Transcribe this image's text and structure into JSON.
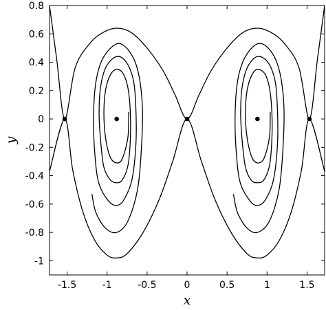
{
  "chart_data": {
    "type": "line",
    "title": "",
    "xlabel": "x",
    "ylabel": "y",
    "xlim": [
      -1.72,
      1.72
    ],
    "ylim": [
      -1.1,
      0.8
    ],
    "grid": false,
    "legend": "none",
    "color": "#000000",
    "xticks": [
      -1.5,
      -1,
      -0.5,
      0,
      0.5,
      1,
      1.5
    ],
    "xtick_labels": [
      "-1.5",
      "-1",
      "-0.5",
      "0",
      "0.5",
      "1",
      "1.5"
    ],
    "yticks": [
      -1,
      -0.8,
      -0.6,
      -0.4,
      -0.2,
      0,
      0.2,
      0.4,
      0.6,
      0.8
    ],
    "ytick_labels": [
      "-1",
      "-0.8",
      "-0.6",
      "-0.4",
      "-0.2",
      "0",
      "0.2",
      "0.4",
      "0.6",
      "0.8"
    ],
    "equilibria": [
      {
        "x": -1.53,
        "y": 0
      },
      {
        "x": -0.88,
        "y": 0
      },
      {
        "x": 0,
        "y": 0
      },
      {
        "x": 0.88,
        "y": 0
      },
      {
        "x": 1.53,
        "y": 0
      }
    ],
    "curves": [
      {
        "id": "separatrix-upper",
        "points": [
          [
            -1.72,
            0.8
          ],
          [
            -1.63,
            0.42
          ],
          [
            -1.53,
            0
          ],
          [
            -1.4,
            0.36
          ],
          [
            -1.22,
            0.53
          ],
          [
            -1.05,
            0.61
          ],
          [
            -0.88,
            0.64
          ],
          [
            -0.7,
            0.61
          ],
          [
            -0.5,
            0.5
          ],
          [
            -0.3,
            0.34
          ],
          [
            -0.15,
            0.17
          ],
          [
            0,
            0
          ],
          [
            0.15,
            0.17
          ],
          [
            0.3,
            0.34
          ],
          [
            0.5,
            0.5
          ],
          [
            0.7,
            0.61
          ],
          [
            0.88,
            0.64
          ],
          [
            1.05,
            0.61
          ],
          [
            1.22,
            0.53
          ],
          [
            1.4,
            0.36
          ],
          [
            1.53,
            0
          ],
          [
            1.63,
            0.42
          ],
          [
            1.72,
            0.8
          ]
        ]
      },
      {
        "id": "separatrix-lower",
        "points": [
          [
            -1.72,
            -0.37
          ],
          [
            -1.53,
            0
          ],
          [
            -1.43,
            -0.36
          ],
          [
            -1.3,
            -0.66
          ],
          [
            -1.15,
            -0.86
          ],
          [
            -1.0,
            -0.96
          ],
          [
            -0.88,
            -0.98
          ],
          [
            -0.75,
            -0.95
          ],
          [
            -0.55,
            -0.8
          ],
          [
            -0.35,
            -0.57
          ],
          [
            -0.18,
            -0.3
          ],
          [
            0,
            0
          ],
          [
            0.18,
            -0.3
          ],
          [
            0.35,
            -0.57
          ],
          [
            0.55,
            -0.8
          ],
          [
            0.75,
            -0.95
          ],
          [
            0.88,
            -0.98
          ],
          [
            1.0,
            -0.96
          ],
          [
            1.15,
            -0.86
          ],
          [
            1.3,
            -0.66
          ],
          [
            1.43,
            -0.36
          ],
          [
            1.53,
            0
          ],
          [
            1.72,
            -0.37
          ]
        ]
      },
      {
        "id": "spiral-left",
        "points": [
          [
            -0.73,
            0.05
          ],
          [
            -0.74,
            -0.13
          ],
          [
            -0.81,
            -0.28
          ],
          [
            -0.88,
            -0.31
          ],
          [
            -0.96,
            -0.27
          ],
          [
            -1.02,
            -0.13
          ],
          [
            -1.04,
            0.04
          ],
          [
            -1.02,
            0.2
          ],
          [
            -0.96,
            0.31
          ],
          [
            -0.88,
            0.35
          ],
          [
            -0.8,
            0.32
          ],
          [
            -0.74,
            0.22
          ],
          [
            -0.71,
            0.05
          ],
          [
            -0.71,
            -0.15
          ],
          [
            -0.74,
            -0.33
          ],
          [
            -0.81,
            -0.43
          ],
          [
            -0.88,
            -0.45
          ],
          [
            -0.96,
            -0.43
          ],
          [
            -1.04,
            -0.34
          ],
          [
            -1.08,
            -0.16
          ],
          [
            -1.1,
            0.04
          ],
          [
            -1.08,
            0.23
          ],
          [
            -1.01,
            0.37
          ],
          [
            -0.88,
            0.44
          ],
          [
            -0.76,
            0.4
          ],
          [
            -0.67,
            0.27
          ],
          [
            -0.64,
            0.07
          ],
          [
            -0.64,
            -0.18
          ],
          [
            -0.69,
            -0.43
          ],
          [
            -0.79,
            -0.57
          ],
          [
            -0.88,
            -0.61
          ],
          [
            -0.98,
            -0.58
          ],
          [
            -1.1,
            -0.46
          ],
          [
            -1.15,
            -0.27
          ],
          [
            -1.17,
            0
          ],
          [
            -1.14,
            0.26
          ],
          [
            -1.05,
            0.43
          ],
          [
            -0.88,
            0.53
          ],
          [
            -0.74,
            0.49
          ],
          [
            -0.62,
            0.35
          ],
          [
            -0.56,
            0.1
          ],
          [
            -0.57,
            -0.2
          ],
          [
            -0.62,
            -0.5
          ],
          [
            -0.74,
            -0.72
          ],
          [
            -0.88,
            -0.8
          ],
          [
            -1.02,
            -0.77
          ],
          [
            -1.14,
            -0.66
          ],
          [
            -1.19,
            -0.53
          ]
        ]
      },
      {
        "id": "spiral-right",
        "points": [
          [
            1.04,
            0.05
          ],
          [
            1.03,
            -0.13
          ],
          [
            0.96,
            -0.28
          ],
          [
            0.88,
            -0.31
          ],
          [
            0.81,
            -0.27
          ],
          [
            0.75,
            -0.13
          ],
          [
            0.73,
            0.04
          ],
          [
            0.75,
            0.2
          ],
          [
            0.81,
            0.31
          ],
          [
            0.88,
            0.35
          ],
          [
            0.97,
            0.32
          ],
          [
            1.03,
            0.22
          ],
          [
            1.06,
            0.05
          ],
          [
            1.06,
            -0.15
          ],
          [
            1.03,
            -0.33
          ],
          [
            0.96,
            -0.43
          ],
          [
            0.88,
            -0.45
          ],
          [
            0.8,
            -0.43
          ],
          [
            0.73,
            -0.34
          ],
          [
            0.69,
            -0.16
          ],
          [
            0.67,
            0.04
          ],
          [
            0.69,
            0.23
          ],
          [
            0.76,
            0.37
          ],
          [
            0.88,
            0.44
          ],
          [
            1.01,
            0.4
          ],
          [
            1.1,
            0.27
          ],
          [
            1.13,
            0.07
          ],
          [
            1.13,
            -0.18
          ],
          [
            1.08,
            -0.43
          ],
          [
            0.98,
            -0.57
          ],
          [
            0.88,
            -0.61
          ],
          [
            0.79,
            -0.58
          ],
          [
            0.67,
            -0.46
          ],
          [
            0.62,
            -0.27
          ],
          [
            0.6,
            0
          ],
          [
            0.63,
            0.26
          ],
          [
            0.72,
            0.43
          ],
          [
            0.88,
            0.53
          ],
          [
            1.03,
            0.49
          ],
          [
            1.15,
            0.35
          ],
          [
            1.21,
            0.1
          ],
          [
            1.2,
            -0.2
          ],
          [
            1.15,
            -0.5
          ],
          [
            1.03,
            -0.72
          ],
          [
            0.88,
            -0.8
          ],
          [
            0.75,
            -0.77
          ],
          [
            0.63,
            -0.66
          ],
          [
            0.58,
            -0.53
          ]
        ]
      }
    ]
  }
}
